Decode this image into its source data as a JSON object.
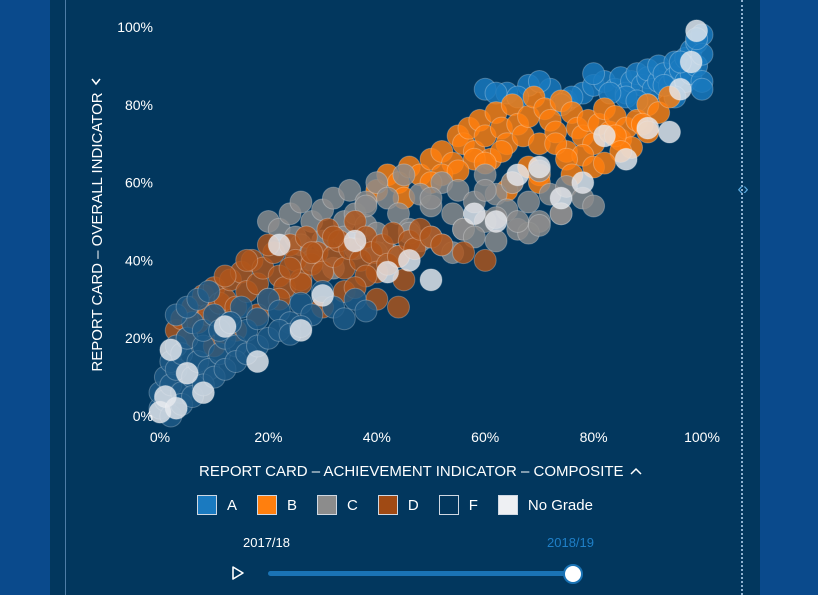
{
  "chart_data": {
    "type": "scatter",
    "title": "",
    "xlabel": "REPORT CARD – ACHIEVEMENT INDICATOR – COMPOSITE",
    "ylabel": "REPORT CARD – OVERALL INDICATOR",
    "x_ticks": [
      "0%",
      "20%",
      "40%",
      "60%",
      "80%",
      "100%"
    ],
    "y_ticks": [
      "0%",
      "20%",
      "40%",
      "60%",
      "80%",
      "100%"
    ],
    "xlim": [
      0,
      100
    ],
    "ylim": [
      0,
      100
    ],
    "grid": false,
    "legend_position": "bottom",
    "series": [
      {
        "name": "A",
        "color": "#1a7ac0",
        "x": [
          60,
          64,
          68,
          72,
          75,
          78,
          80,
          82,
          84,
          85,
          86,
          87,
          88,
          89,
          90,
          90,
          91,
          92,
          92,
          93,
          94,
          95,
          95,
          96,
          97,
          97,
          98,
          98,
          99,
          99,
          100,
          100,
          100,
          100,
          95,
          90,
          86,
          80,
          76,
          70,
          62,
          66,
          74,
          83,
          88,
          93,
          96,
          99
        ],
        "y": [
          84,
          83,
          85,
          84,
          81,
          83,
          85,
          86,
          84,
          87,
          83,
          86,
          88,
          85,
          87,
          89,
          84,
          86,
          90,
          88,
          85,
          91,
          87,
          89,
          86,
          92,
          88,
          94,
          90,
          96,
          98,
          93,
          86,
          84,
          82,
          80,
          82,
          88,
          82,
          86,
          83,
          82,
          80,
          83,
          81,
          85,
          91,
          97
        ]
      },
      {
        "name": "B",
        "color": "#ff7f0e",
        "x": [
          40,
          42,
          44,
          46,
          48,
          50,
          52,
          54,
          55,
          56,
          57,
          58,
          59,
          60,
          61,
          62,
          63,
          64,
          65,
          66,
          67,
          68,
          69,
          70,
          71,
          72,
          73,
          74,
          75,
          76,
          77,
          78,
          79,
          80,
          81,
          82,
          83,
          84,
          85,
          86,
          87,
          88,
          90,
          92,
          94,
          52,
          58,
          63,
          68,
          73,
          78,
          84,
          89,
          45,
          50,
          55,
          60,
          65,
          70,
          75,
          80,
          85,
          90,
          64,
          70,
          76,
          82
        ],
        "y": [
          58,
          62,
          60,
          64,
          62,
          66,
          68,
          65,
          72,
          70,
          74,
          68,
          76,
          72,
          66,
          78,
          74,
          70,
          80,
          75,
          72,
          77,
          82,
          70,
          79,
          76,
          73,
          81,
          68,
          78,
          74,
          72,
          76,
          70,
          75,
          79,
          73,
          77,
          71,
          74,
          69,
          76,
          80,
          78,
          82,
          62,
          66,
          68,
          64,
          70,
          67,
          72,
          75,
          56,
          60,
          63,
          65,
          60,
          62,
          66,
          64,
          68,
          73,
          58,
          60,
          62,
          65
        ]
      },
      {
        "name": "C",
        "color": "#8c8c8c",
        "x": [
          20,
          22,
          24,
          25,
          26,
          28,
          30,
          30,
          32,
          34,
          35,
          36,
          38,
          38,
          40,
          40,
          42,
          44,
          45,
          46,
          48,
          50,
          50,
          52,
          54,
          55,
          56,
          58,
          60,
          60,
          62,
          64,
          65,
          66,
          68,
          70,
          70,
          72,
          74,
          75,
          78,
          80,
          26,
          34,
          42,
          48,
          56,
          62,
          68,
          74,
          28,
          36,
          44,
          52,
          58,
          66,
          32,
          40,
          46,
          54,
          62,
          70,
          38,
          50,
          60
        ],
        "y": [
          50,
          48,
          52,
          46,
          55,
          50,
          53,
          45,
          56,
          50,
          58,
          52,
          49,
          55,
          60,
          47,
          56,
          52,
          62,
          48,
          57,
          54,
          46,
          60,
          52,
          58,
          48,
          55,
          62,
          50,
          57,
          53,
          60,
          48,
          55,
          63,
          50,
          57,
          52,
          59,
          56,
          54,
          44,
          46,
          42,
          45,
          48,
          51,
          47,
          52,
          40,
          43,
          41,
          44,
          46,
          50,
          38,
          42,
          47,
          42,
          45,
          49,
          54,
          56,
          58
        ]
      },
      {
        "name": "D",
        "color": "#b0561b",
        "x": [
          3,
          4,
          5,
          6,
          7,
          8,
          9,
          10,
          11,
          12,
          13,
          14,
          15,
          16,
          17,
          18,
          19,
          20,
          21,
          22,
          23,
          24,
          25,
          26,
          27,
          28,
          29,
          30,
          31,
          32,
          33,
          34,
          35,
          36,
          37,
          38,
          39,
          40,
          41,
          42,
          43,
          44,
          45,
          46,
          47,
          48,
          50,
          52,
          56,
          60,
          10,
          14,
          18,
          22,
          26,
          30,
          34,
          38,
          12,
          16,
          20,
          24,
          28,
          32,
          36,
          40,
          44
        ],
        "y": [
          22,
          25,
          20,
          28,
          24,
          31,
          26,
          33,
          29,
          30,
          35,
          28,
          37,
          32,
          40,
          34,
          38,
          30,
          42,
          36,
          33,
          44,
          40,
          35,
          46,
          39,
          42,
          37,
          48,
          41,
          45,
          38,
          43,
          50,
          40,
          46,
          42,
          37,
          44,
          39,
          47,
          41,
          35,
          45,
          43,
          48,
          46,
          44,
          42,
          40,
          18,
          22,
          26,
          30,
          34,
          28,
          32,
          36,
          36,
          40,
          44,
          38,
          42,
          46,
          33,
          30,
          28
        ]
      },
      {
        "name": "F",
        "color": "#1e5a87",
        "x": [
          0,
          0,
          1,
          1,
          2,
          2,
          3,
          3,
          4,
          4,
          5,
          6,
          6,
          7,
          8,
          8,
          9,
          10,
          11,
          12,
          13,
          14,
          15,
          16,
          18,
          20,
          22,
          24,
          26,
          28,
          30,
          32,
          34,
          36,
          38,
          2,
          4,
          6,
          8,
          10,
          12,
          14,
          16,
          18,
          20,
          22,
          24,
          26,
          3,
          5,
          7,
          9,
          11,
          13
        ],
        "y": [
          2,
          6,
          4,
          10,
          8,
          14,
          12,
          18,
          6,
          16,
          20,
          10,
          24,
          14,
          18,
          22,
          12,
          26,
          16,
          20,
          24,
          18,
          28,
          22,
          25,
          30,
          27,
          24,
          29,
          26,
          32,
          28,
          25,
          30,
          27,
          0,
          3,
          5,
          8,
          10,
          12,
          14,
          16,
          18,
          20,
          22,
          21,
          23,
          26,
          28,
          30,
          32,
          22,
          24
        ]
      },
      {
        "name": "No Grade",
        "color": "#e6e9ee",
        "x": [
          0,
          1,
          2,
          3,
          5,
          8,
          12,
          18,
          22,
          26,
          30,
          36,
          42,
          46,
          50,
          58,
          62,
          66,
          70,
          74,
          78,
          82,
          86,
          90,
          94,
          96,
          98,
          99
        ],
        "y": [
          1,
          5,
          17,
          2,
          11,
          6,
          23,
          14,
          44,
          22,
          31,
          45,
          37,
          40,
          35,
          52,
          50,
          62,
          64,
          56,
          60,
          72,
          66,
          74,
          73,
          84,
          91,
          99
        ]
      }
    ]
  },
  "legend": [
    {
      "label": "A",
      "color": "#1a7ac0"
    },
    {
      "label": "B",
      "color": "#ff7f0e"
    },
    {
      "label": "C",
      "color": "#8c8c8c"
    },
    {
      "label": "D",
      "color": "#a04a14"
    },
    {
      "label": "F",
      "color": "#02375e"
    },
    {
      "label": "No Grade",
      "color": "#eef0f3"
    }
  ],
  "timeline": {
    "start_label": "2017/18",
    "end_label": "2018/19",
    "progress": 1.0,
    "play_icon": "play-icon"
  },
  "icons": {
    "y_axis_chevron": "chevron-right-icon",
    "x_axis_chevron": "chevron-up-icon",
    "panel_handle": "expand-collapse-icon"
  }
}
